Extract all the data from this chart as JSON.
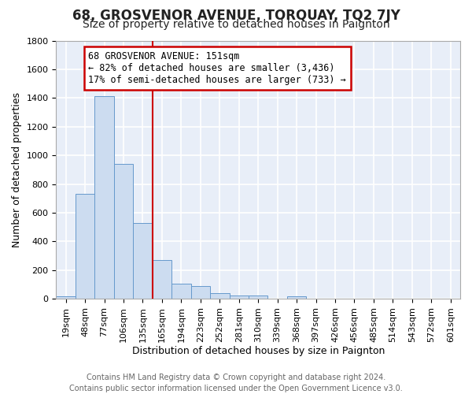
{
  "title": "68, GROSVENOR AVENUE, TORQUAY, TQ2 7JY",
  "subtitle": "Size of property relative to detached houses in Paignton",
  "xlabel": "Distribution of detached houses by size in Paignton",
  "ylabel": "Number of detached properties",
  "categories": [
    "19sqm",
    "48sqm",
    "77sqm",
    "106sqm",
    "135sqm",
    "165sqm",
    "194sqm",
    "223sqm",
    "252sqm",
    "281sqm",
    "310sqm",
    "339sqm",
    "368sqm",
    "397sqm",
    "426sqm",
    "456sqm",
    "485sqm",
    "514sqm",
    "543sqm",
    "572sqm",
    "601sqm"
  ],
  "values": [
    20,
    730,
    1415,
    940,
    530,
    270,
    105,
    90,
    40,
    25,
    25,
    0,
    15,
    0,
    0,
    0,
    0,
    0,
    0,
    0,
    0
  ],
  "bar_color": "#ccdcf0",
  "bar_edge_color": "#6699cc",
  "bar_alpha": 1.0,
  "vline_color": "#cc0000",
  "annotation_title": "68 GROSVENOR AVENUE: 151sqm",
  "annotation_line1": "← 82% of detached houses are smaller (3,436)",
  "annotation_line2": "17% of semi-detached houses are larger (733) →",
  "annotation_box_color": "#cc0000",
  "ylim": [
    0,
    1800
  ],
  "yticks": [
    0,
    200,
    400,
    600,
    800,
    1000,
    1200,
    1400,
    1600,
    1800
  ],
  "plot_bg_color": "#e8eef8",
  "fig_bg_color": "#ffffff",
  "grid_color": "#ffffff",
  "footer_line1": "Contains HM Land Registry data © Crown copyright and database right 2024.",
  "footer_line2": "Contains public sector information licensed under the Open Government Licence v3.0.",
  "title_fontsize": 12,
  "subtitle_fontsize": 10,
  "xlabel_fontsize": 9,
  "ylabel_fontsize": 9,
  "tick_fontsize": 8,
  "footer_fontsize": 7,
  "annot_fontsize": 8.5
}
